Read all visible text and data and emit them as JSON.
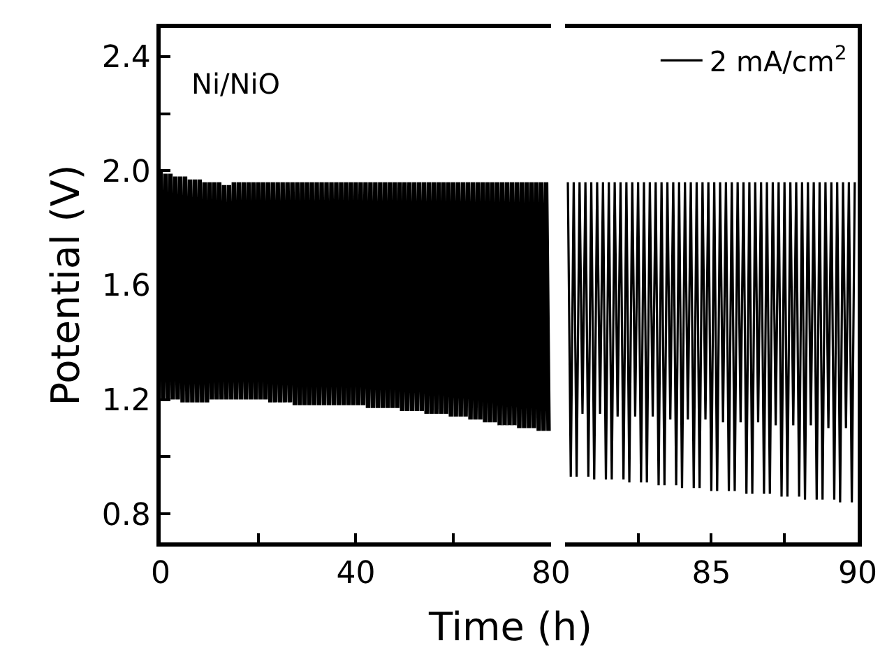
{
  "chart_data": [
    {
      "type": "line",
      "xlabel": "Time (h)",
      "ylabel": "Potential (V)",
      "annotations": [
        "Ni/NiO"
      ],
      "xlim": [
        0,
        80
      ],
      "xticks": [
        0,
        {
          "value": 20,
          "label": null
        },
        40,
        {
          "value": 60,
          "label": null
        },
        80
      ],
      "ylim": [
        0.7,
        2.5
      ],
      "yticks": [
        {
          "value": 0.8,
          "label": "0.8"
        },
        {
          "value": 1.0,
          "label": null
        },
        {
          "value": 1.2,
          "label": "1.2"
        },
        {
          "value": 1.4,
          "label": null
        },
        {
          "value": 1.6,
          "label": "1.6"
        },
        {
          "value": 1.8,
          "label": null
        },
        {
          "value": 2.0,
          "label": "2.0"
        },
        {
          "value": 2.2,
          "label": null
        },
        {
          "value": 2.4,
          "label": "2.4"
        }
      ],
      "marker": "none",
      "line_style": "solid",
      "series": [
        {
          "color": "#000000",
          "x": [
            0,
            0.5,
            1,
            1.5,
            2,
            2.5,
            3,
            3.5,
            4,
            4.5,
            5,
            5.5,
            6,
            6.5,
            7,
            7.5,
            8,
            8.5,
            9,
            9.5,
            10,
            10.5,
            11,
            11.5,
            12,
            12.5,
            13,
            13.5,
            14,
            14.5,
            15,
            15.5,
            16,
            16.5,
            17,
            17.5,
            18,
            18.5,
            19,
            19.5,
            20,
            20.5,
            21,
            21.5,
            22,
            22.5,
            23,
            23.5,
            24,
            24.5,
            25,
            25.5,
            26,
            26.5,
            27,
            27.5,
            28,
            28.5,
            29,
            29.5,
            30,
            30.5,
            31,
            31.5,
            32,
            32.5,
            33,
            33.5,
            34,
            34.5,
            35,
            35.5,
            36,
            36.5,
            37,
            37.5,
            38,
            38.5,
            39,
            39.5,
            40,
            40.5,
            41,
            41.5,
            42,
            42.5,
            43,
            43.5,
            44,
            44.5,
            45,
            45.5,
            46,
            46.5,
            47,
            47.5,
            48,
            48.5,
            49,
            49.5,
            50,
            50.5,
            51,
            51.5,
            52,
            52.5,
            53,
            53.5,
            54,
            54.5,
            55,
            55.5,
            56,
            56.5,
            57,
            57.5,
            58,
            58.5,
            59,
            59.5,
            60,
            60.5,
            61,
            61.5,
            62,
            62.5,
            63,
            63.5,
            64,
            64.5,
            65,
            65.5,
            66,
            66.5,
            67,
            67.5,
            68,
            68.5,
            69,
            69.5,
            70,
            70.5,
            71,
            71.5,
            72,
            72.5,
            73,
            73.5,
            74,
            74.5,
            75,
            75.5,
            76,
            76.5,
            77,
            77.5,
            78,
            78.5,
            79,
            79.5
          ],
          "values": [
            2.0,
            1.2,
            1.99,
            1.2,
            1.99,
            1.2,
            1.98,
            1.2,
            1.98,
            1.19,
            1.98,
            1.19,
            1.97,
            1.19,
            1.97,
            1.19,
            1.97,
            1.19,
            1.96,
            1.19,
            1.96,
            1.2,
            1.96,
            1.2,
            1.96,
            1.2,
            1.95,
            1.2,
            1.95,
            1.2,
            1.96,
            1.2,
            1.96,
            1.2,
            1.96,
            1.2,
            1.96,
            1.2,
            1.96,
            1.2,
            1.96,
            1.2,
            1.96,
            1.2,
            1.96,
            1.19,
            1.96,
            1.19,
            1.96,
            1.19,
            1.96,
            1.19,
            1.96,
            1.19,
            1.96,
            1.18,
            1.96,
            1.18,
            1.96,
            1.18,
            1.96,
            1.18,
            1.96,
            1.18,
            1.96,
            1.18,
            1.96,
            1.18,
            1.96,
            1.18,
            1.96,
            1.18,
            1.96,
            1.18,
            1.96,
            1.18,
            1.96,
            1.18,
            1.96,
            1.18,
            1.96,
            1.18,
            1.96,
            1.18,
            1.96,
            1.17,
            1.96,
            1.17,
            1.96,
            1.17,
            1.96,
            1.17,
            1.96,
            1.17,
            1.96,
            1.17,
            1.96,
            1.17,
            1.96,
            1.16,
            1.96,
            1.16,
            1.96,
            1.16,
            1.96,
            1.16,
            1.96,
            1.16,
            1.96,
            1.15,
            1.96,
            1.15,
            1.96,
            1.15,
            1.96,
            1.15,
            1.96,
            1.15,
            1.96,
            1.14,
            1.96,
            1.14,
            1.96,
            1.14,
            1.96,
            1.14,
            1.96,
            1.13,
            1.96,
            1.13,
            1.96,
            1.13,
            1.96,
            1.12,
            1.96,
            1.12,
            1.96,
            1.12,
            1.96,
            1.11,
            1.96,
            1.11,
            1.96,
            1.11,
            1.96,
            1.11,
            1.96,
            1.1,
            1.96,
            1.1,
            1.96,
            1.1,
            1.96,
            1.1,
            1.96,
            1.09,
            1.96,
            1.09,
            1.96,
            1.09
          ]
        }
      ]
    },
    {
      "type": "line",
      "xlim": [
        80,
        90
      ],
      "xticks": [
        {
          "value": 82.5,
          "label": null
        },
        85,
        {
          "value": 87.5,
          "label": null
        },
        90
      ],
      "ylim": [
        0.7,
        2.5
      ],
      "tick_labels": "x",
      "marker": "none",
      "line_style": "solid",
      "legend": "top right",
      "series": [
        {
          "name": "2 mA/cm$^{2}$",
          "color": "#000000",
          "x": [
            80.1,
            80.2,
            80.3,
            80.4,
            80.5,
            80.6,
            80.7,
            80.8,
            80.9,
            81.0,
            81.1,
            81.2,
            81.3,
            81.4,
            81.5,
            81.6,
            81.7,
            81.8,
            81.9,
            82.0,
            82.1,
            82.2,
            82.3,
            82.4,
            82.5,
            82.6,
            82.7,
            82.8,
            82.9,
            83.0,
            83.1,
            83.2,
            83.3,
            83.4,
            83.5,
            83.6,
            83.7,
            83.8,
            83.9,
            84.0,
            84.1,
            84.2,
            84.3,
            84.4,
            84.5,
            84.6,
            84.7,
            84.8,
            84.9,
            85.0,
            85.1,
            85.2,
            85.3,
            85.4,
            85.5,
            85.6,
            85.7,
            85.8,
            85.9,
            86.0,
            86.1,
            86.2,
            86.3,
            86.4,
            86.5,
            86.6,
            86.7,
            86.8,
            86.9,
            87.0,
            87.1,
            87.2,
            87.3,
            87.4,
            87.5,
            87.6,
            87.7,
            87.8,
            87.9,
            88.0,
            88.1,
            88.2,
            88.3,
            88.4,
            88.5,
            88.6,
            88.7,
            88.8,
            88.9,
            89.0,
            89.1,
            89.2,
            89.3,
            89.4,
            89.5,
            89.6,
            89.7,
            89.8,
            89.9
          ],
          "values": [
            1.96,
            0.93,
            1.96,
            0.93,
            1.96,
            1.15,
            1.96,
            0.93,
            1.96,
            0.92,
            1.96,
            1.15,
            1.96,
            0.92,
            1.96,
            0.92,
            1.96,
            1.14,
            1.96,
            0.92,
            1.96,
            0.91,
            1.96,
            1.14,
            1.96,
            0.91,
            1.96,
            0.91,
            1.96,
            1.14,
            1.96,
            0.9,
            1.96,
            0.9,
            1.96,
            1.13,
            1.96,
            0.9,
            1.96,
            0.89,
            1.96,
            1.13,
            1.96,
            0.89,
            1.96,
            0.89,
            1.96,
            1.13,
            1.96,
            0.88,
            1.96,
            0.88,
            1.96,
            1.12,
            1.96,
            0.88,
            1.96,
            0.88,
            1.96,
            1.12,
            1.96,
            0.87,
            1.96,
            0.87,
            1.96,
            1.12,
            1.96,
            0.87,
            1.96,
            0.87,
            1.96,
            1.11,
            1.96,
            0.86,
            1.96,
            0.86,
            1.96,
            1.11,
            1.96,
            0.86,
            1.96,
            0.85,
            1.96,
            1.11,
            1.96,
            0.85,
            1.96,
            0.85,
            1.96,
            1.1,
            1.96,
            0.85,
            1.96,
            0.84,
            1.96,
            1.1,
            1.96,
            0.84,
            1.96
          ]
        }
      ]
    }
  ]
}
